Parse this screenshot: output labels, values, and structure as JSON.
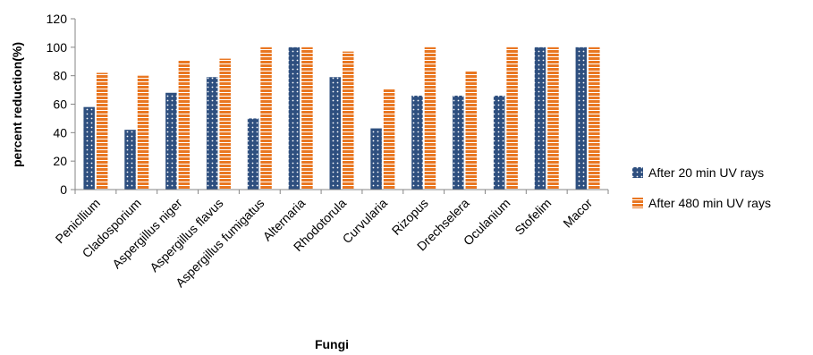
{
  "chart_data": {
    "type": "bar",
    "title": "",
    "xlabel": "Fungi",
    "ylabel": "percent reduction(%)",
    "ylim": [
      0,
      120
    ],
    "yticks": [
      0,
      20,
      40,
      60,
      80,
      100,
      120
    ],
    "grid": false,
    "legend_position": "right",
    "categories": [
      "Penicllium",
      "Cladosporium",
      "Aspergillus niger",
      "Aspergillus flavus",
      "Aspergillus fumigatus",
      "Alternaria",
      "Rhodotorula",
      "Curvularia",
      "Rizopus",
      "Drechselera",
      "Oculanium",
      "Stofelim",
      "Macor"
    ],
    "series": [
      {
        "name": "After 20 min UV rays",
        "color": "#2e4f7f",
        "pattern": "dots",
        "values": [
          58,
          42,
          68,
          79,
          50,
          100,
          79,
          43,
          66,
          66,
          66,
          100,
          100
        ]
      },
      {
        "name": "After 480 min UV rays",
        "color": "#e97722",
        "pattern": "horizontal-stripes",
        "values": [
          82,
          80,
          91,
          92,
          100,
          100,
          97,
          71,
          100,
          83,
          100,
          100,
          100
        ]
      }
    ]
  }
}
